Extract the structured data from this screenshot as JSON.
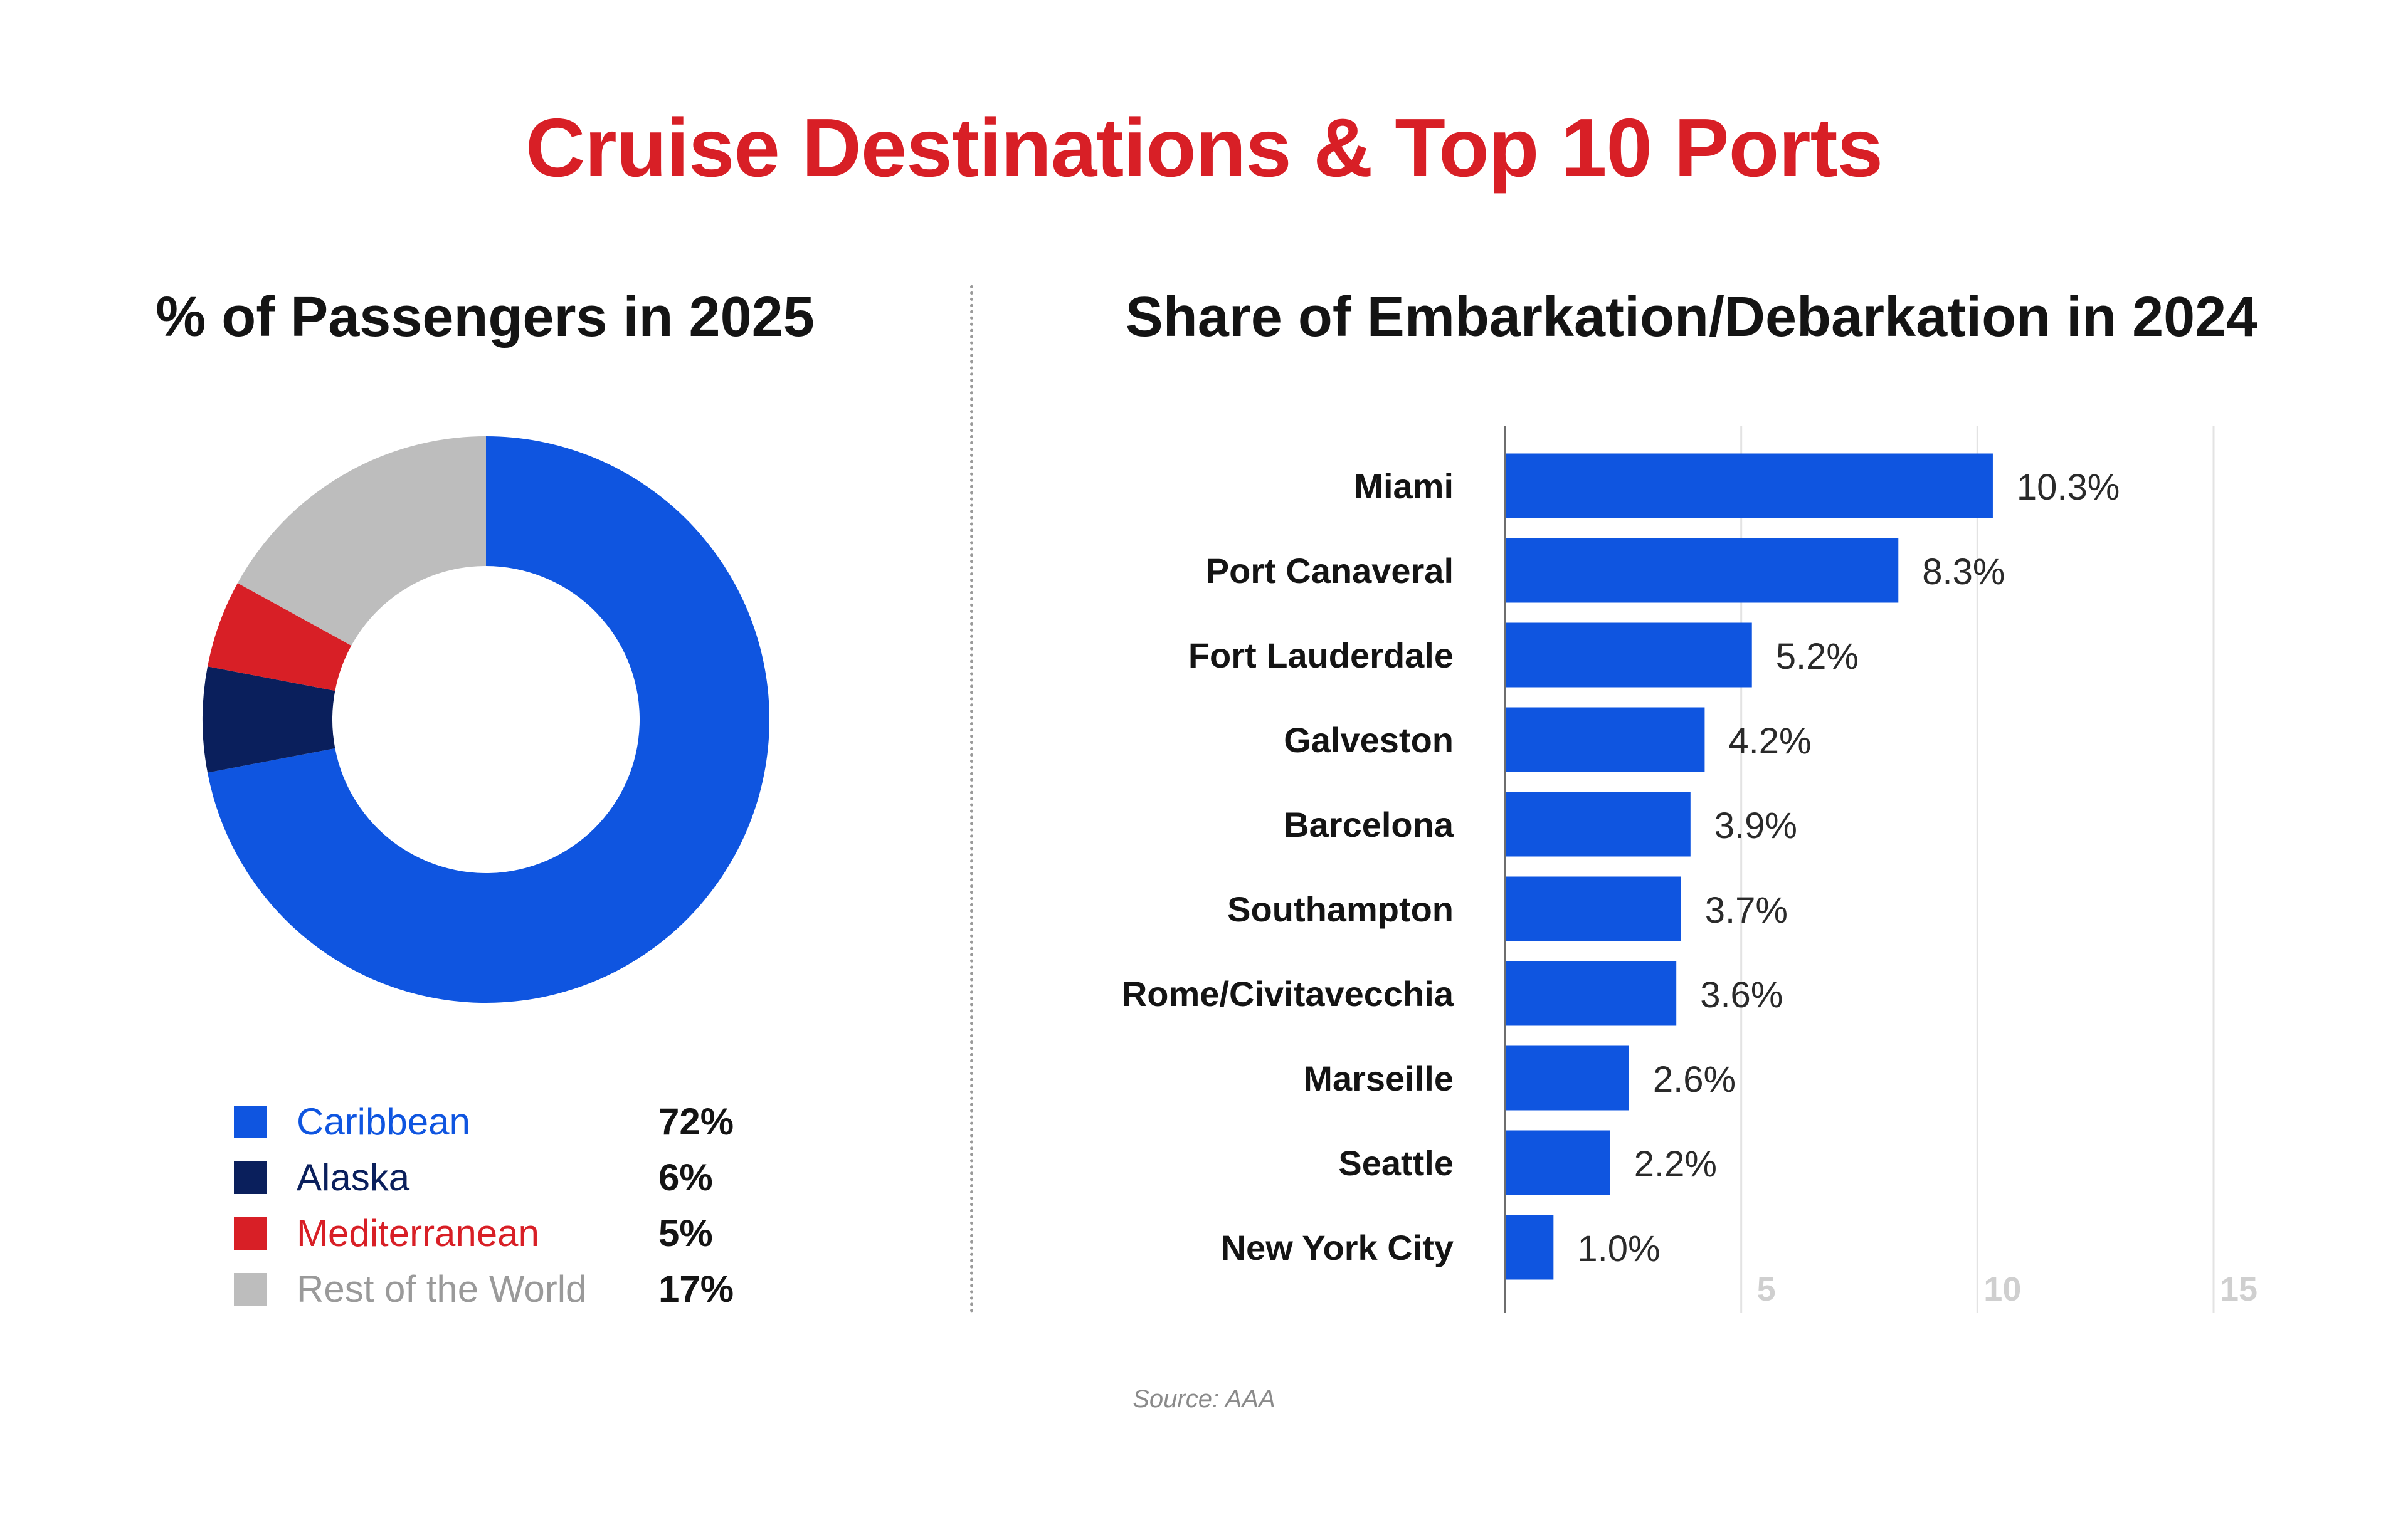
{
  "title": "Cruise Destinations & Top 10 Ports",
  "source": "Source: AAA",
  "chart_data": [
    {
      "type": "donut",
      "title": "% of Passengers in 2025",
      "categories": [
        "Caribbean",
        "Alaska",
        "Mediterranean",
        "Rest of the World"
      ],
      "values": [
        72,
        6,
        5,
        17
      ],
      "labels": [
        "72%",
        "6%",
        "5%",
        "17%"
      ],
      "colors": [
        "#0f55e0",
        "#0a1f5c",
        "#d81f26",
        "#bdbdbd"
      ],
      "legend": "bottom"
    },
    {
      "type": "bar",
      "orientation": "horizontal",
      "title": "Share of Embarkation/Debarkation in 2024",
      "categories": [
        "Miami",
        "Port Canaveral",
        "Fort Lauderdale",
        "Galveston",
        "Barcelona",
        "Southampton",
        "Rome/Civitavecchia",
        "Marseille",
        "Seattle",
        "New York City"
      ],
      "values": [
        10.3,
        8.3,
        5.2,
        4.2,
        3.9,
        3.7,
        3.6,
        2.6,
        2.2,
        1.0
      ],
      "labels": [
        "10.3%",
        "8.3%",
        "5.2%",
        "4.2%",
        "3.9%",
        "3.7%",
        "3.6%",
        "2.6%",
        "2.2%",
        "1.0%"
      ],
      "xlim": [
        0,
        15
      ],
      "ticks": [
        "5",
        "10",
        "15"
      ],
      "tick_values": [
        5,
        10,
        15
      ],
      "grid": true,
      "color": "#0f55e0"
    }
  ]
}
